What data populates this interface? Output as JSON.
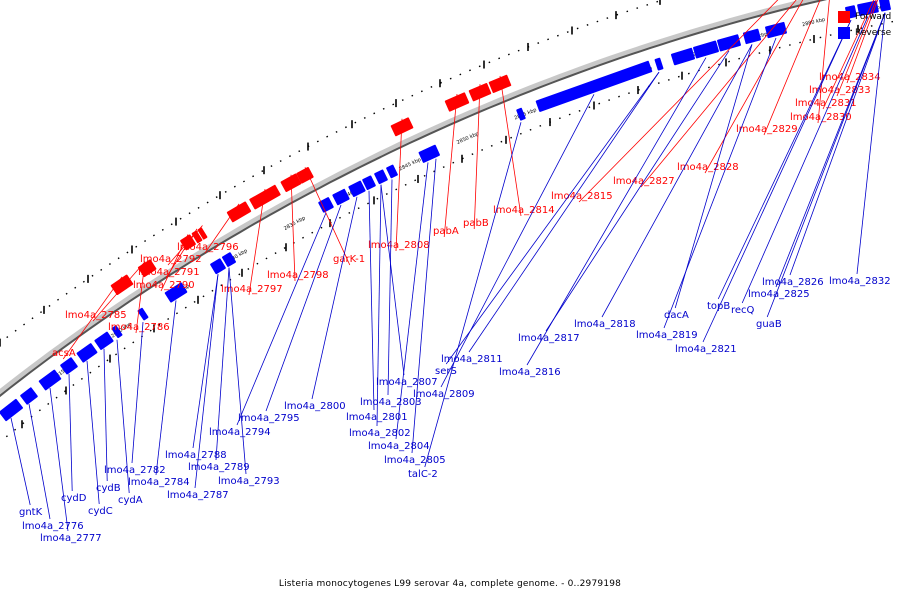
{
  "legend": {
    "forward_label": "Forward",
    "reverse_label": "Reverse",
    "forward_color": "#ff0000",
    "reverse_color": "#0000ff"
  },
  "caption": "Listeria monocytogenes L99 serovar 4a, complete genome. - 0..2979198",
  "kbp_ticks": [
    "2815 kbp",
    "2820 kbp",
    "2825 kbp",
    "2830 kbp",
    "2835 kbp",
    "2840 kbp",
    "2845 kbp",
    "2850 kbp",
    "2855 kbp",
    "2860 kbp",
    "2865 kbp",
    "2870 kbp",
    "2875 kbp",
    "2880 kbp",
    "2885 kbp"
  ],
  "forward_labels": [
    "acsA",
    "lmo4a_2785",
    "lmo4a_2786",
    "lmo4a_2790",
    "lmo4a_2791",
    "lmo4a_2792",
    "lmo4a_2796",
    "lmo4a_2797",
    "lmo4a_2798",
    "garK-1",
    "lmo4a_2808",
    "pabA",
    "pabB",
    "lmo4a_2814",
    "lmo4a_2815",
    "lmo4a_2827",
    "lmo4a_2828",
    "lmo4a_2829",
    "lmo4a_2830",
    "lmo4a_2831",
    "lmo4a_2833",
    "lmo4a_2834"
  ],
  "reverse_labels": [
    "gntK",
    "lmo4a_2776",
    "lmo4a_2777",
    "cydD",
    "cydC",
    "cydB",
    "cydA",
    "lmo4a_2782",
    "lmo4a_2784",
    "lmo4a_2787",
    "lmo4a_2788",
    "lmo4a_2789",
    "lmo4a_2793",
    "lmo4a_2794",
    "lmo4a_2795",
    "lmo4a_2800",
    "lmo4a_2801",
    "lmo4a_2802",
    "lmo4a_2803",
    "lmo4a_2804",
    "lmo4a_2805",
    "talC-2",
    "lmo4a_2807",
    "lmo4a_2809",
    "serS",
    "lmo4a_2811",
    "lmo4a_2816",
    "lmo4a_2817",
    "lmo4a_2818",
    "dacA",
    "lmo4a_2819",
    "lmo4a_2821",
    "topB",
    "recQ",
    "guaB",
    "lmo4a_2825",
    "lmo4a_2826",
    "lmo4a_2832"
  ]
}
